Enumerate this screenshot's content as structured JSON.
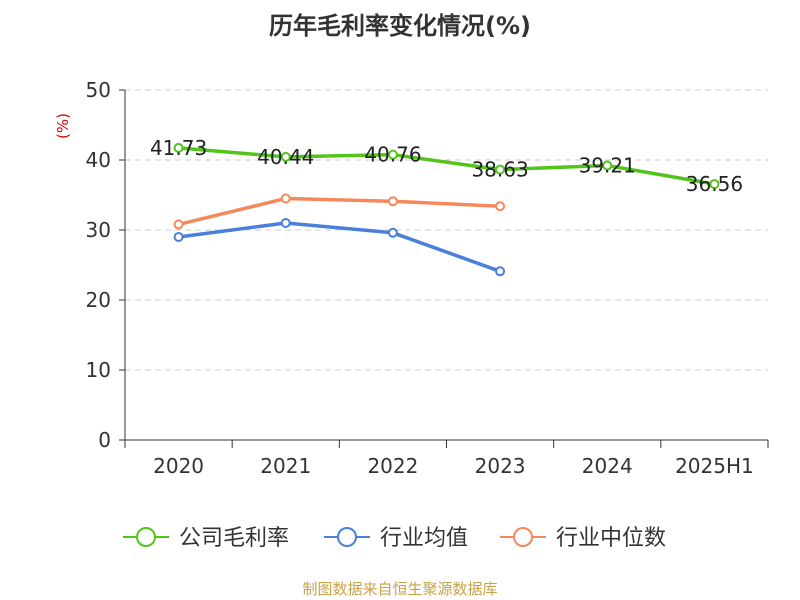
{
  "title": "历年毛利率变化情况(%)",
  "footer": "制图数据来自恒生聚源数据库",
  "chart_data": {
    "type": "line",
    "title": "历年毛利率变化情况(%)",
    "ylabel": "(%)",
    "xlabel": "",
    "ylim": [
      0,
      50
    ],
    "yticks": [
      0,
      10,
      20,
      30,
      40,
      50
    ],
    "grid": true,
    "legend_position": "bottom",
    "categories": [
      "2020",
      "2021",
      "2022",
      "2023",
      "2024",
      "2025H1"
    ],
    "series": [
      {
        "name": "公司毛利率",
        "color": "#52c41a",
        "values": [
          41.73,
          40.44,
          40.76,
          38.63,
          39.21,
          36.56
        ],
        "labels": [
          "41.73",
          "40.44",
          "40.76",
          "38.63",
          "39.21",
          "36.56"
        ]
      },
      {
        "name": "行业均值",
        "color": "#4a7fdc",
        "values": [
          29.0,
          31.0,
          29.6,
          24.1,
          null,
          null
        ]
      },
      {
        "name": "行业中位数",
        "color": "#f5895b",
        "values": [
          30.8,
          34.5,
          34.1,
          33.4,
          null,
          null
        ]
      }
    ]
  }
}
